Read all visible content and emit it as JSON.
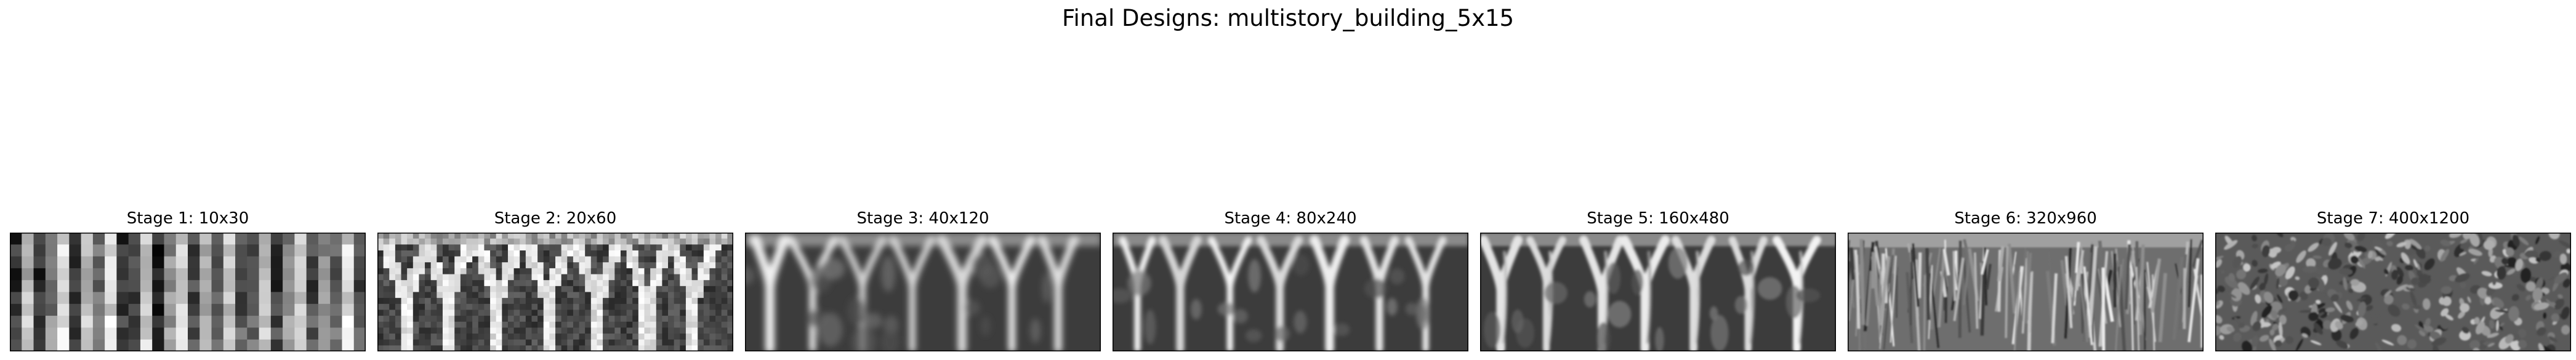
{
  "figure": {
    "title": "Final Designs: multistory_building_5x15"
  },
  "panels": [
    {
      "title": "Stage 1: 10x30"
    },
    {
      "title": "Stage 2: 20x60"
    },
    {
      "title": "Stage 3: 40x120"
    },
    {
      "title": "Stage 4: 80x240"
    },
    {
      "title": "Stage 5: 160x480"
    },
    {
      "title": "Stage 6: 320x960"
    },
    {
      "title": "Stage 7: 400x1200"
    }
  ]
}
